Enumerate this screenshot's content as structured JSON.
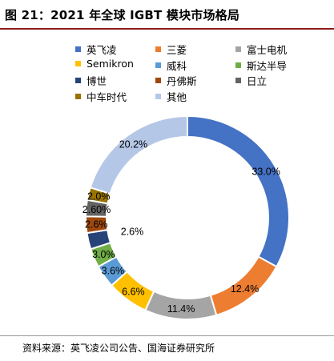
{
  "title": "图 21：2021 年全球 IGBT 模块市场格局",
  "source": "资料来源：英飞凌公司公告、国海证券研究所",
  "chart_data": {
    "type": "pie",
    "title": "图 21：2021 年全球 IGBT 模块市场格局",
    "donut": true,
    "legend_position": "top",
    "slices": [
      {
        "label": "英飞凌",
        "value": 33.0,
        "display": "33.0%",
        "color": "#4472C4"
      },
      {
        "label": "三菱",
        "value": 12.4,
        "display": "12.4%",
        "color": "#ED7D31"
      },
      {
        "label": "富士电机",
        "value": 11.4,
        "display": "11.4%",
        "color": "#A5A5A5"
      },
      {
        "label": "Semikron",
        "value": 6.6,
        "display": "6.6%",
        "color": "#FFC000"
      },
      {
        "label": "威科",
        "value": 3.6,
        "display": "3.6%",
        "color": "#5B9BD5"
      },
      {
        "label": "斯达半导",
        "value": 3.0,
        "display": "3.0%",
        "color": "#70AD47"
      },
      {
        "label": "博世",
        "value": 2.6,
        "display": "2.6%",
        "color": "#264478"
      },
      {
        "label": "丹佛斯",
        "value": 2.6,
        "display": "2.6%",
        "color": "#9E480E"
      },
      {
        "label": "日立",
        "value": 2.6,
        "display": "2.60%",
        "color": "#636363"
      },
      {
        "label": "中车时代",
        "value": 2.0,
        "display": "2.0%",
        "color": "#997300"
      },
      {
        "label": "其他",
        "value": 20.2,
        "display": "20.2%",
        "color": "#B4C7E7"
      }
    ]
  }
}
